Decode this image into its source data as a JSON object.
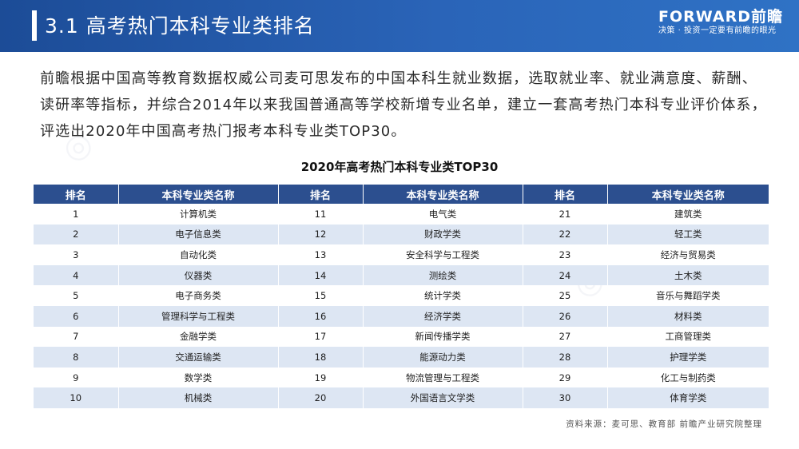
{
  "header": {
    "title": "3.1 高考热门本科专业类排名",
    "brand_name": "FORWARD前瞻",
    "brand_slogan": "决策 · 投资一定要有前瞻的眼光"
  },
  "intro": "前瞻根据中国高等教育数据权威公司麦可思发布的中国本科生就业数据，选取就业率、就业满意度、薪酬、读研率等指标，并综合2014年以来我国普通高等学校新增专业名单，建立一套高考热门本科专业评价体系，评选出2020年中国高考热门报考本科专业类TOP30。",
  "table": {
    "title": "2020年高考热门本科专业类TOP30",
    "headers": [
      "排名",
      "本科专业类名称",
      "排名",
      "本科专业类名称",
      "排名",
      "本科专业类名称"
    ],
    "rows": [
      [
        "1",
        "计算机类",
        "11",
        "电气类",
        "21",
        "建筑类"
      ],
      [
        "2",
        "电子信息类",
        "12",
        "财政学类",
        "22",
        "轻工类"
      ],
      [
        "3",
        "自动化类",
        "13",
        "安全科学与工程类",
        "23",
        "经济与贸易类"
      ],
      [
        "4",
        "仪器类",
        "14",
        "测绘类",
        "24",
        "土木类"
      ],
      [
        "5",
        "电子商务类",
        "15",
        "统计学类",
        "25",
        "音乐与舞蹈学类"
      ],
      [
        "6",
        "管理科学与工程类",
        "16",
        "经济学类",
        "26",
        "材料类"
      ],
      [
        "7",
        "金融学类",
        "17",
        "新闻传播学类",
        "27",
        "工商管理类"
      ],
      [
        "8",
        "交通运输类",
        "18",
        "能源动力类",
        "28",
        "护理学类"
      ],
      [
        "9",
        "数学类",
        "19",
        "物流管理与工程类",
        "29",
        "化工与制药类"
      ],
      [
        "10",
        "机械类",
        "20",
        "外国语言文学类",
        "30",
        "体育学类"
      ]
    ]
  },
  "source": "资料来源：麦可思、教育部 前瞻产业研究院整理",
  "colors": {
    "header_bg": "#1c4c97",
    "table_header_bg": "#2c4f8f",
    "row_stripe": "#dde6f3"
  }
}
